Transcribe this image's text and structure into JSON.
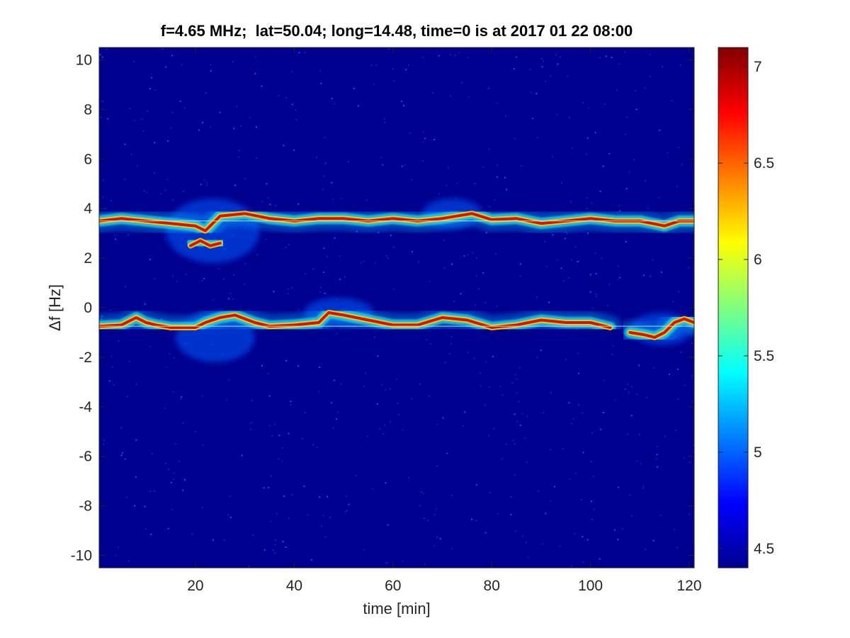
{
  "chart_data": {
    "type": "heatmap",
    "title": "f=4.65 MHz;  lat=50.04; long=14.48, time=0 is at 2017 01 22 08:00",
    "xlabel": "time [min]",
    "ylabel": "Δf [Hz]",
    "xlim": [
      0.5,
      121
    ],
    "ylim": [
      -10.5,
      10.5
    ],
    "xticks": [
      20,
      40,
      60,
      80,
      100,
      120
    ],
    "yticks": [
      -10,
      -8,
      -6,
      -4,
      -2,
      0,
      2,
      4,
      6,
      8,
      10
    ],
    "colormap": "jet",
    "background_color": "#00008f",
    "colorbar": {
      "range": [
        4.4,
        7.1
      ],
      "ticks": [
        4.5,
        5,
        5.5,
        6,
        6.5,
        7
      ]
    },
    "reference_lines": [
      3.5,
      -0.75
    ],
    "traces": [
      {
        "name": "",
        "points": [
          [
            0.5,
            3.5
          ],
          [
            5,
            3.6
          ],
          [
            10,
            3.5
          ],
          [
            15,
            3.4
          ],
          [
            20,
            3.3
          ],
          [
            22,
            3.1
          ],
          [
            25,
            3.7
          ],
          [
            30,
            3.8
          ],
          [
            35,
            3.6
          ],
          [
            40,
            3.5
          ],
          [
            45,
            3.6
          ],
          [
            50,
            3.6
          ],
          [
            55,
            3.5
          ],
          [
            60,
            3.6
          ],
          [
            65,
            3.5
          ],
          [
            70,
            3.6
          ],
          [
            73,
            3.7
          ],
          [
            76,
            3.8
          ],
          [
            80,
            3.55
          ],
          [
            85,
            3.6
          ],
          [
            90,
            3.4
          ],
          [
            95,
            3.5
          ],
          [
            100,
            3.6
          ],
          [
            105,
            3.5
          ],
          [
            110,
            3.5
          ],
          [
            115,
            3.3
          ],
          [
            118,
            3.5
          ],
          [
            121,
            3.5
          ]
        ]
      },
      {
        "name": "",
        "points": [
          [
            0.5,
            -0.75
          ],
          [
            5,
            -0.7
          ],
          [
            8,
            -0.4
          ],
          [
            10,
            -0.6
          ],
          [
            12,
            -0.7
          ],
          [
            15,
            -0.8
          ],
          [
            20,
            -0.8
          ],
          [
            22,
            -0.6
          ],
          [
            25,
            -0.4
          ],
          [
            28,
            -0.3
          ],
          [
            32,
            -0.6
          ],
          [
            35,
            -0.75
          ],
          [
            40,
            -0.7
          ],
          [
            45,
            -0.6
          ],
          [
            47,
            -0.2
          ],
          [
            50,
            -0.3
          ],
          [
            55,
            -0.5
          ],
          [
            60,
            -0.7
          ],
          [
            65,
            -0.7
          ],
          [
            70,
            -0.4
          ],
          [
            75,
            -0.5
          ],
          [
            80,
            -0.8
          ],
          [
            85,
            -0.7
          ],
          [
            90,
            -0.5
          ],
          [
            95,
            -0.6
          ],
          [
            100,
            -0.6
          ],
          [
            104,
            -0.8
          ]
        ]
      },
      {
        "name": "",
        "points": [
          [
            108,
            -1.0
          ],
          [
            111,
            -1.1
          ],
          [
            113,
            -1.2
          ],
          [
            115,
            -1.0
          ],
          [
            117,
            -0.6
          ],
          [
            119,
            -0.45
          ],
          [
            121,
            -0.6
          ]
        ]
      },
      {
        "name": "",
        "points": [
          [
            19,
            2.5
          ],
          [
            21,
            2.7
          ],
          [
            23,
            2.5
          ],
          [
            25,
            2.6
          ]
        ]
      }
    ],
    "diffuse_regions": [
      {
        "x": [
          14,
          33
        ],
        "y": [
          1.8,
          4.4
        ]
      },
      {
        "x": [
          16,
          32
        ],
        "y": [
          -2.2,
          -0.2
        ]
      },
      {
        "x": [
          42,
          56
        ],
        "y": [
          -0.8,
          0.4
        ]
      },
      {
        "x": [
          66,
          78
        ],
        "y": [
          3.2,
          4.4
        ]
      },
      {
        "x": [
          108,
          121
        ],
        "y": [
          -1.5,
          -0.2
        ]
      }
    ]
  }
}
